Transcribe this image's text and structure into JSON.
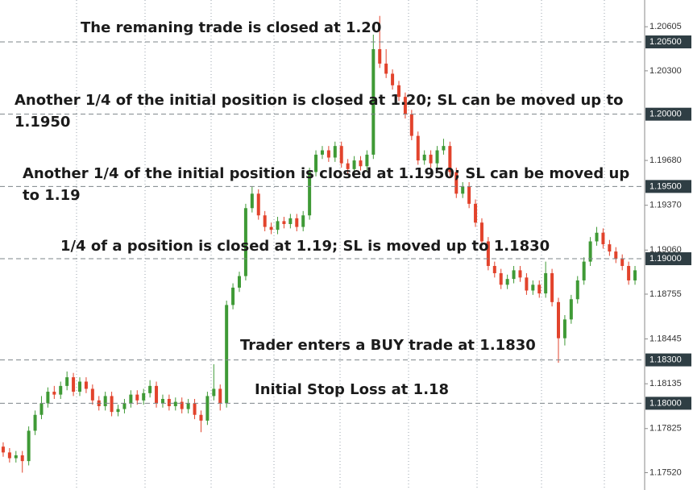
{
  "chart_data": {
    "type": "candlestick",
    "up_color": "#3f9a36",
    "down_color": "#e2432c",
    "level_color": "#2f3e44",
    "grid": true,
    "ylim": [
      1.174,
      1.2079
    ],
    "yticks": [
      1.20605,
      {
        "value": 1.203,
        "label": "1.20300"
      },
      {
        "value": 1.1968,
        "label": "1.19680"
      },
      {
        "value": 1.1937,
        "label": "1.19370"
      },
      {
        "value": 1.1906,
        "label": "1.19060"
      },
      1.18755,
      1.18445,
      1.18135,
      1.17825,
      {
        "value": 1.1752,
        "label": "1.17520"
      }
    ],
    "levels": [
      {
        "value": 1.205,
        "label": "1.20500"
      },
      {
        "value": 1.2,
        "label": "1.20000"
      },
      {
        "value": 1.195,
        "label": "1.19500"
      },
      {
        "value": 1.19,
        "label": "1.19000"
      },
      {
        "value": 1.183,
        "label": "1.18300"
      },
      {
        "value": 1.18,
        "label": "1.18000"
      }
    ],
    "annotations": [
      [
        "The remaning trade is closed at 1.20"
      ],
      [
        "Another 1/4 of the initial position is closed at 1.20; SL can be moved up to",
        "1.1950"
      ],
      [
        "Another 1/4 of the initial position is closed at 1.1950; SL can be moved up",
        "to 1.19"
      ],
      [
        "1/4 of a position is closed at 1.19; SL is moved up to 1.1830"
      ],
      [
        "Trader enters a BUY trade at 1.1830"
      ],
      [
        "Initial Stop Loss at 1.18"
      ]
    ],
    "open": [
      1.177,
      1.1766,
      1.1762,
      1.1764,
      1.176,
      1.1781,
      1.1792,
      1.18,
      1.1808,
      1.1806,
      1.1812,
      1.1818,
      1.1808,
      1.1815,
      1.181,
      1.1802,
      1.1798,
      1.1805,
      1.1794,
      1.1796,
      1.18,
      1.1806,
      1.1802,
      1.1807,
      1.1812,
      1.18,
      1.1803,
      1.1798,
      1.1801,
      1.1796,
      1.18,
      1.1792,
      1.1788,
      1.1805,
      1.181,
      1.18,
      1.1868,
      1.188,
      1.1888,
      1.1935,
      1.1945,
      1.193,
      1.1922,
      1.192,
      1.1926,
      1.1924,
      1.1928,
      1.1922,
      1.193,
      1.196,
      1.1972,
      1.1975,
      1.197,
      1.1978,
      1.1966,
      1.1962,
      1.1968,
      1.1964,
      1.1972,
      1.2045,
      1.2035,
      1.2028,
      1.202,
      1.2012,
      1.2,
      1.1985,
      1.1968,
      1.1972,
      1.1966,
      1.1975,
      1.1978,
      1.196,
      1.1945,
      1.195,
      1.1938,
      1.1925,
      1.1912,
      1.1895,
      1.189,
      1.1882,
      1.1886,
      1.1892,
      1.1887,
      1.1878,
      1.1882,
      1.1876,
      1.189,
      1.187,
      1.1845,
      1.1858,
      1.1872,
      1.1885,
      1.1898,
      1.1912,
      1.1918,
      1.191,
      1.1905,
      1.19,
      1.1895,
      1.1885
    ],
    "high": [
      1.1773,
      1.1769,
      1.1767,
      1.1767,
      1.1784,
      1.1795,
      1.1805,
      1.1811,
      1.1812,
      1.1815,
      1.1822,
      1.1821,
      1.1818,
      1.1818,
      1.1813,
      1.1805,
      1.1808,
      1.1808,
      1.1799,
      1.1803,
      1.1809,
      1.1809,
      1.181,
      1.1816,
      1.1815,
      1.1806,
      1.1806,
      1.1804,
      1.1804,
      1.1803,
      1.1803,
      1.1795,
      1.1808,
      1.1827,
      1.1813,
      1.1871,
      1.1883,
      1.1891,
      1.1938,
      1.195,
      1.1948,
      1.1933,
      1.1925,
      1.1929,
      1.1929,
      1.1931,
      1.1931,
      1.1933,
      1.1963,
      1.1975,
      1.1978,
      1.1978,
      1.1981,
      1.1981,
      1.1969,
      1.1971,
      1.1971,
      1.1975,
      1.2055,
      1.2068,
      1.2045,
      1.2031,
      1.2023,
      1.2015,
      1.2003,
      1.1988,
      1.1975,
      1.1975,
      1.1978,
      1.1983,
      1.1981,
      1.1963,
      1.1953,
      1.1953,
      1.1941,
      1.1928,
      1.1915,
      1.1898,
      1.1893,
      1.1889,
      1.1895,
      1.1895,
      1.189,
      1.1885,
      1.1885,
      1.1898,
      1.1893,
      1.1873,
      1.1861,
      1.1875,
      1.1888,
      1.1901,
      1.1915,
      1.1922,
      1.1921,
      1.1913,
      1.1908,
      1.1903,
      1.1898,
      1.1895
    ],
    "low": [
      1.1763,
      1.1759,
      1.1759,
      1.1752,
      1.1757,
      1.1778,
      1.1789,
      1.1797,
      1.1803,
      1.1803,
      1.1809,
      1.1805,
      1.1805,
      1.1807,
      1.1799,
      1.1795,
      1.1795,
      1.1791,
      1.1791,
      1.1793,
      1.1797,
      1.1799,
      1.1799,
      1.1804,
      1.1797,
      1.1797,
      1.1795,
      1.1795,
      1.1793,
      1.1793,
      1.1789,
      1.178,
      1.1785,
      1.1802,
      1.1795,
      1.1797,
      1.1865,
      1.1877,
      1.1885,
      1.1932,
      1.1927,
      1.1919,
      1.1917,
      1.1917,
      1.1921,
      1.1921,
      1.1919,
      1.1919,
      1.1927,
      1.1957,
      1.1969,
      1.1967,
      1.1967,
      1.1963,
      1.1959,
      1.1959,
      1.1961,
      1.1961,
      1.1969,
      1.2032,
      1.2025,
      1.2017,
      1.2009,
      1.1997,
      1.1982,
      1.1965,
      1.1965,
      1.1963,
      1.1963,
      1.1972,
      1.1957,
      1.1942,
      1.1942,
      1.1935,
      1.1922,
      1.1909,
      1.1892,
      1.1887,
      1.1879,
      1.1879,
      1.1883,
      1.1884,
      1.1875,
      1.1875,
      1.1873,
      1.1873,
      1.1867,
      1.1828,
      1.184,
      1.1855,
      1.1869,
      1.1882,
      1.1895,
      1.1909,
      1.1907,
      1.1902,
      1.1897,
      1.1892,
      1.1882,
      1.1882
    ],
    "close": [
      1.1766,
      1.1762,
      1.1764,
      1.176,
      1.1781,
      1.1792,
      1.18,
      1.1808,
      1.1806,
      1.1812,
      1.1818,
      1.1808,
      1.1815,
      1.181,
      1.1802,
      1.1798,
      1.1805,
      1.1794,
      1.1796,
      1.18,
      1.1806,
      1.1802,
      1.1807,
      1.1812,
      1.18,
      1.1803,
      1.1798,
      1.1801,
      1.1796,
      1.18,
      1.1792,
      1.1788,
      1.1805,
      1.181,
      1.18,
      1.1868,
      1.188,
      1.1888,
      1.1935,
      1.1945,
      1.193,
      1.1922,
      1.192,
      1.1926,
      1.1924,
      1.1928,
      1.1922,
      1.193,
      1.196,
      1.1972,
      1.1975,
      1.197,
      1.1978,
      1.1966,
      1.1962,
      1.1968,
      1.1964,
      1.1972,
      1.2045,
      1.2035,
      1.2028,
      1.202,
      1.2012,
      1.2,
      1.1985,
      1.1968,
      1.1972,
      1.1966,
      1.1975,
      1.1978,
      1.196,
      1.1945,
      1.195,
      1.1938,
      1.1925,
      1.1912,
      1.1895,
      1.189,
      1.1882,
      1.1886,
      1.1892,
      1.1887,
      1.1878,
      1.1882,
      1.1876,
      1.189,
      1.187,
      1.1845,
      1.1858,
      1.1872,
      1.1885,
      1.1898,
      1.1912,
      1.1918,
      1.191,
      1.1905,
      1.19,
      1.1895,
      1.1885,
      1.1892
    ]
  }
}
